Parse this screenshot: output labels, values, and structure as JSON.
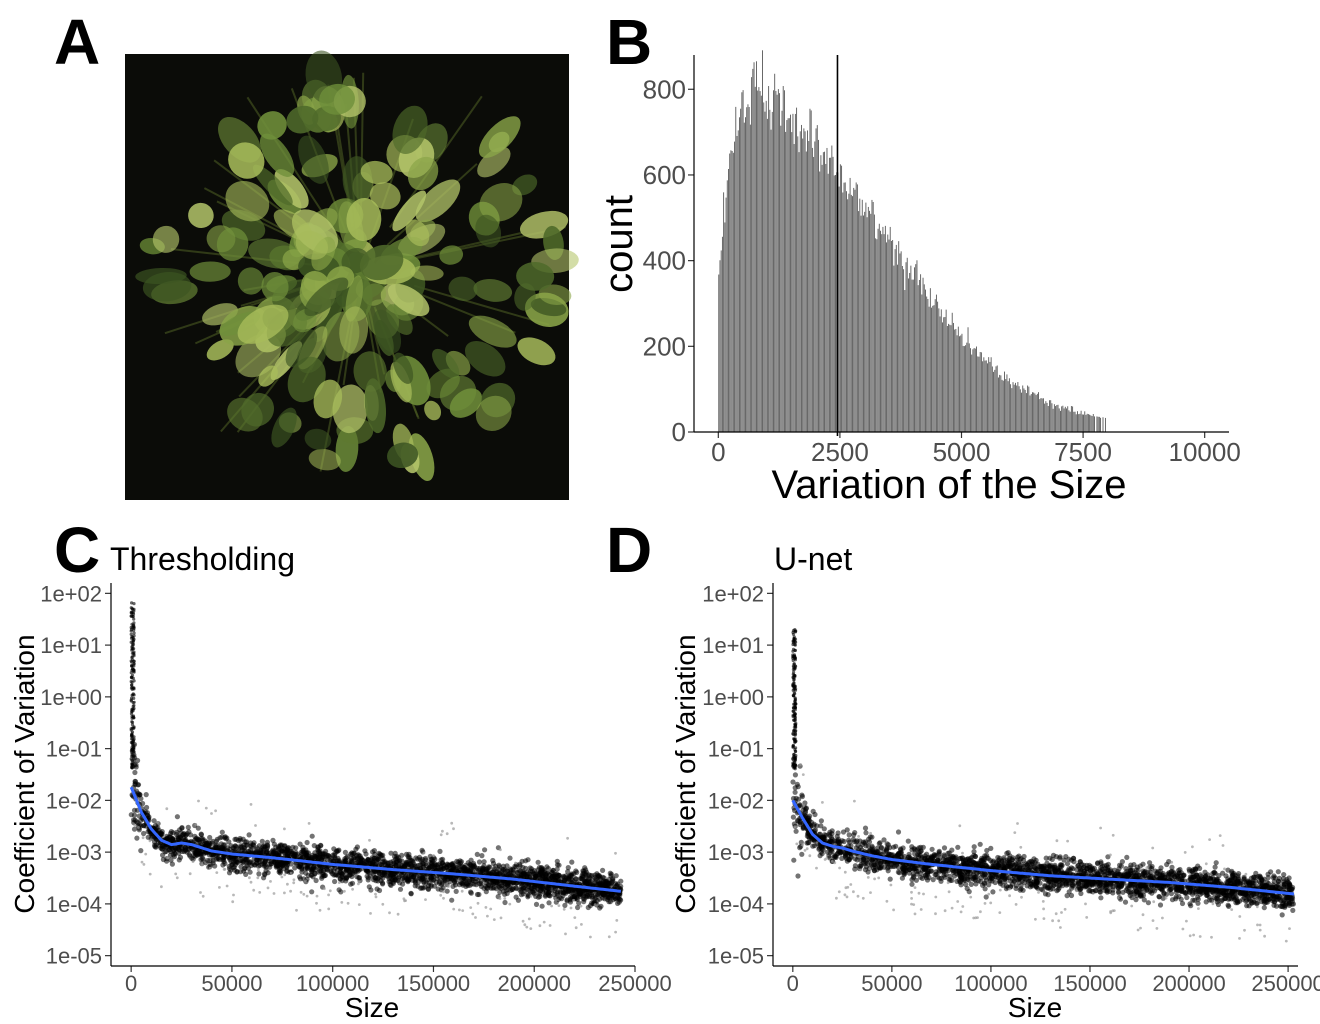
{
  "panels": {
    "a": {
      "letter": "A"
    },
    "b": {
      "letter": "B"
    },
    "c": {
      "letter": "C"
    },
    "d": {
      "letter": "D"
    }
  },
  "chart_data": [
    {
      "panel": "B",
      "type": "bar",
      "subtype": "histogram",
      "title": "",
      "xlabel": "Variation of the Size",
      "ylabel": "count",
      "xlim": [
        -500,
        10500
      ],
      "ylim": [
        0,
        880
      ],
      "xticks": [
        "0",
        "2500",
        "5000",
        "7500",
        "10000"
      ],
      "yticks": [
        "0",
        "200",
        "400",
        "600",
        "800"
      ],
      "bar_color": "#595959",
      "vline_x": 2450,
      "vline_color": "#000000",
      "bin_width": 25,
      "x_range": [
        0,
        9750
      ],
      "density_profile": {
        "x": [
          0,
          50,
          150,
          300,
          500,
          800,
          1000,
          1500,
          2000,
          2500,
          3000,
          3500,
          4000,
          4500,
          5000,
          5500,
          6000,
          6500,
          7000,
          7500,
          8000,
          8500,
          9000,
          9500,
          9750
        ],
        "count": [
          360,
          400,
          560,
          700,
          770,
          800,
          780,
          720,
          660,
          600,
          530,
          450,
          370,
          290,
          220,
          165,
          120,
          85,
          60,
          42,
          30,
          22,
          17,
          13,
          12
        ]
      },
      "grid": false
    },
    {
      "panel": "C",
      "type": "scatter",
      "title": "Thresholding",
      "xlabel": "Size",
      "ylabel": "Coefficient of Variation",
      "xlim": [
        -10000,
        250000
      ],
      "ylim_log10": [
        -5.2,
        2.2
      ],
      "y_scale": "log10",
      "xticks": [
        "0",
        "50000",
        "100000",
        "150000",
        "200000",
        "250000"
      ],
      "yticks": [
        "1e-05",
        "1e-04",
        "1e-03",
        "1e-02",
        "1e-01",
        "1e+00",
        "1e+01",
        "1e+02"
      ],
      "point_color": "#000000",
      "x_max": 243000,
      "y_max_at_zero": 70,
      "smooth_line": {
        "color": "#3366ff",
        "x": [
          0,
          5000,
          10000,
          15000,
          20000,
          25000,
          30000,
          40000,
          50000,
          70000,
          100000,
          130000,
          160000,
          190000,
          220000,
          243000
        ],
        "y": [
          0.018,
          0.006,
          0.0028,
          0.0017,
          0.0014,
          0.0015,
          0.0014,
          0.00105,
          0.00092,
          0.00078,
          0.00058,
          0.00046,
          0.00038,
          0.0003,
          0.00022,
          0.000175
        ]
      },
      "grid": false
    },
    {
      "panel": "D",
      "type": "scatter",
      "title": "U-net",
      "xlabel": "Size",
      "ylabel": "Coefficient of Variation",
      "xlim": [
        -10000,
        255000
      ],
      "ylim_log10": [
        -5.2,
        2.2
      ],
      "y_scale": "log10",
      "xticks": [
        "0",
        "50000",
        "100000",
        "150000",
        "200000",
        "250000"
      ],
      "yticks": [
        "1e-05",
        "1e-04",
        "1e-03",
        "1e-02",
        "1e-01",
        "1e+00",
        "1e+01",
        "1e+02"
      ],
      "point_color": "#000000",
      "x_max": 253000,
      "y_max_at_zero": 20,
      "smooth_line": {
        "color": "#3366ff",
        "x": [
          0,
          5000,
          10000,
          15000,
          20000,
          25000,
          30000,
          40000,
          50000,
          70000,
          100000,
          130000,
          160000,
          190000,
          220000,
          253000
        ],
        "y": [
          0.01,
          0.0045,
          0.0022,
          0.0015,
          0.0013,
          0.0012,
          0.00105,
          0.00085,
          0.00072,
          0.00058,
          0.00044,
          0.00035,
          0.0003,
          0.00026,
          0.00021,
          0.000155
        ]
      },
      "grid": false
    }
  ],
  "photo": {
    "background": "#0b0c08",
    "foliage_colors": [
      "#6f8f3a",
      "#8aa548",
      "#5d7a30",
      "#a7bb5a",
      "#4f6a2a",
      "#b4c56a",
      "#3d5522"
    ]
  }
}
